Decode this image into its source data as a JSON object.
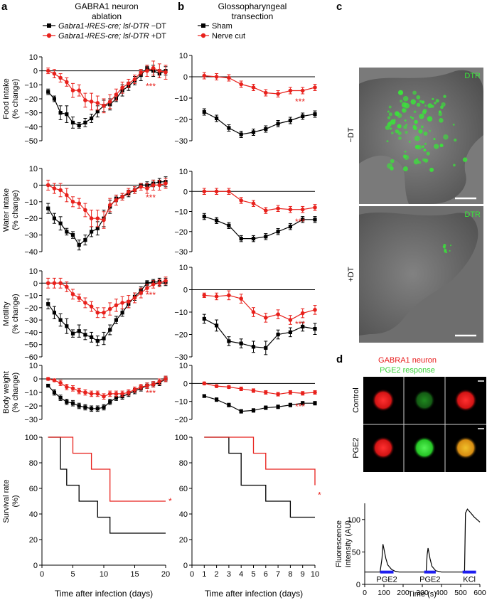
{
  "panel_labels": {
    "a": "a",
    "b": "b",
    "c": "c",
    "d": "d"
  },
  "colors": {
    "ctrl": "#000000",
    "treat": "#e8211c",
    "green": "#39e639",
    "red": "#e81c1c",
    "yellow": "#e3a21a",
    "bar": "#1d1df0"
  },
  "panel_a": {
    "title_line1": "GABRA1 neuron",
    "title_line2": "ablation",
    "legend": [
      {
        "label_italic": "Gabra1-IRES-cre; lsl-DTR",
        "label_suffix": " −DT",
        "color": "#000000",
        "marker": "square"
      },
      {
        "label_italic": "Gabra1-IRES-cre; lsl-DTR",
        "label_suffix": " +DT",
        "color": "#e8211c",
        "marker": "circle"
      }
    ],
    "xlabel": "Time after infection (days)"
  },
  "panel_b": {
    "title_line1": "Glossopharyngeal",
    "title_line2": "transection",
    "legend": [
      {
        "label": "Sham",
        "color": "#000000",
        "marker": "square"
      },
      {
        "label": "Nerve cut",
        "color": "#e8211c",
        "marker": "circle"
      }
    ],
    "xlabel": "Time after infection (days)"
  },
  "panel_c": {
    "row_labels": [
      "−DT",
      "+DT"
    ],
    "image_labels": [
      "DTR",
      "DTR"
    ]
  },
  "panel_d": {
    "legend_line1": "GABRA1 neuron",
    "legend_line2": "PGE2 response",
    "row_labels": [
      "Control",
      "PGE2"
    ],
    "stim_labels": [
      "PGE2",
      "PGE2",
      "KCl"
    ]
  },
  "chart_data": [
    {
      "id": "a1",
      "type": "line",
      "ylabel": [
        "Food intake",
        "(% change)"
      ],
      "ylim": [
        -50,
        10
      ],
      "yticks": [
        10,
        0,
        -10,
        -20,
        -30,
        -40,
        -50
      ],
      "x": [
        1,
        2,
        3,
        4,
        5,
        6,
        7,
        8,
        9,
        10,
        11,
        12,
        13,
        14,
        15,
        16,
        17,
        18,
        19,
        20
      ],
      "significance": "***",
      "series": [
        {
          "name": "−DT",
          "values": [
            -15,
            -20,
            -30,
            -31,
            -37,
            -39,
            -37,
            -34,
            -29,
            -25,
            -24,
            -20,
            -14,
            -11,
            -7,
            -3,
            2,
            0,
            -2,
            0
          ],
          "err": [
            2,
            2,
            5,
            6,
            4,
            2,
            3,
            3,
            4,
            4,
            4,
            2,
            4,
            3,
            3,
            4,
            2,
            4,
            3,
            3
          ]
        },
        {
          "name": "+DT",
          "values": [
            0,
            -2,
            -5,
            -8,
            -14,
            -14,
            -21,
            -22,
            -23,
            -25,
            -22,
            -17,
            -12,
            -9,
            -6,
            -1,
            0,
            2,
            0,
            -1
          ],
          "err": [
            2,
            3,
            3,
            3,
            5,
            4,
            5,
            6,
            5,
            5,
            5,
            4,
            4,
            3,
            3,
            2,
            4,
            5,
            5,
            5
          ]
        }
      ]
    },
    {
      "id": "a2",
      "type": "line",
      "ylabel": [
        "Water intake",
        "(% change)"
      ],
      "ylim": [
        -40,
        10
      ],
      "yticks": [
        10,
        0,
        -10,
        -20,
        -30,
        -40
      ],
      "x": [
        1,
        2,
        3,
        4,
        5,
        6,
        7,
        8,
        9,
        10,
        11,
        12,
        13,
        14,
        15,
        16,
        17,
        18,
        19,
        20
      ],
      "significance": "***",
      "series": [
        {
          "name": "−DT",
          "values": [
            -14,
            -20,
            -23,
            -28,
            -30,
            -36,
            -33,
            -28,
            -26,
            -20,
            -13,
            -8,
            -7,
            -5,
            -3,
            0,
            0,
            1,
            2,
            2
          ],
          "err": [
            3,
            3,
            4,
            2,
            2,
            3,
            3,
            3,
            4,
            5,
            4,
            2,
            2,
            2,
            2,
            1,
            2,
            2,
            2,
            3
          ]
        },
        {
          "name": "+DT",
          "values": [
            0,
            -2,
            -3,
            -6,
            -10,
            -11,
            -15,
            -20,
            -20,
            -21,
            -12,
            -9,
            -7,
            -4,
            -3,
            -1,
            -2,
            0,
            0,
            1
          ],
          "err": [
            3,
            3,
            4,
            4,
            3,
            3,
            4,
            5,
            5,
            5,
            4,
            3,
            2,
            2,
            2,
            2,
            3,
            3,
            3,
            3
          ]
        }
      ]
    },
    {
      "id": "a3",
      "type": "line",
      "ylabel": [
        "Motility",
        "(% change)"
      ],
      "ylim": [
        -60,
        10
      ],
      "yticks": [
        10,
        0,
        -10,
        -20,
        -30,
        -40,
        -50,
        -60
      ],
      "x": [
        1,
        2,
        3,
        4,
        5,
        6,
        7,
        8,
        9,
        10,
        11,
        12,
        13,
        14,
        15,
        16,
        17,
        18,
        19,
        20
      ],
      "significance": "***",
      "series": [
        {
          "name": "−DT",
          "values": [
            -17,
            -24,
            -30,
            -35,
            -41,
            -39,
            -42,
            -44,
            -47,
            -45,
            -38,
            -30,
            -24,
            -17,
            -11,
            -6,
            0,
            1,
            1,
            1
          ],
          "err": [
            4,
            5,
            5,
            6,
            3,
            5,
            4,
            4,
            4,
            5,
            4,
            3,
            3,
            3,
            3,
            3,
            2,
            2,
            3,
            3
          ]
        },
        {
          "name": "+DT",
          "values": [
            0,
            0,
            0,
            -3,
            -9,
            -12,
            -16,
            -19,
            -24,
            -24,
            -21,
            -18,
            -16,
            -15,
            -12,
            -8,
            -4,
            -1,
            0,
            2
          ],
          "err": [
            4,
            4,
            4,
            4,
            4,
            3,
            4,
            4,
            4,
            4,
            5,
            5,
            5,
            5,
            4,
            4,
            3,
            3,
            3,
            3
          ]
        }
      ]
    },
    {
      "id": "a4",
      "type": "line",
      "ylabel": [
        "Body weight",
        "(% change)"
      ],
      "ylim": [
        -30,
        10
      ],
      "yticks": [
        10,
        0,
        -10,
        -20,
        -30
      ],
      "x": [
        1,
        2,
        3,
        4,
        5,
        6,
        7,
        8,
        9,
        10,
        11,
        12,
        13,
        14,
        15,
        16,
        17,
        18,
        19,
        20
      ],
      "significance": "***",
      "series": [
        {
          "name": "−DT",
          "values": [
            -5,
            -10,
            -14,
            -17,
            -18,
            -20,
            -21,
            -22,
            -22,
            -21,
            -17,
            -14,
            -13,
            -11,
            -9,
            -7,
            -5,
            -4,
            -3,
            0
          ],
          "err": [
            1,
            2,
            2,
            2,
            2,
            2,
            2,
            2,
            2,
            2,
            2,
            2,
            2,
            2,
            2,
            2,
            2,
            2,
            2,
            2
          ]
        },
        {
          "name": "+DT",
          "values": [
            0,
            -1,
            -3,
            -6,
            -7,
            -9,
            -10,
            -11,
            -11,
            -13,
            -11,
            -11,
            -11,
            -10,
            -8,
            -6,
            -5,
            -4,
            -2,
            0
          ],
          "err": [
            1,
            1,
            2,
            2,
            2,
            2,
            2,
            2,
            2,
            2,
            2,
            2,
            2,
            2,
            2,
            2,
            2,
            2,
            2,
            2
          ]
        }
      ]
    },
    {
      "id": "a5",
      "type": "line",
      "step": true,
      "ylabel": [
        "Survival rate",
        "(%)"
      ],
      "ylim": [
        0,
        100
      ],
      "yticks": [
        100,
        80,
        60,
        40,
        20,
        0
      ],
      "xlim": [
        0,
        20
      ],
      "xticks": [
        0,
        5,
        10,
        15,
        20
      ],
      "significance": "*",
      "series": [
        {
          "name": "−DT",
          "x": [
            1,
            3,
            4,
            6,
            7,
            9,
            11,
            20
          ],
          "values": [
            100,
            75,
            62.5,
            50,
            50,
            37.5,
            25,
            25
          ]
        },
        {
          "name": "+DT",
          "x": [
            1,
            5,
            8,
            11,
            20
          ],
          "values": [
            100,
            87.5,
            75,
            50,
            50
          ]
        }
      ]
    },
    {
      "id": "b1",
      "type": "line",
      "ylim": [
        -30,
        10
      ],
      "yticks": [
        10,
        0,
        -10,
        -20,
        -30
      ],
      "x": [
        1,
        2,
        3,
        4,
        5,
        6,
        7,
        8,
        9,
        10
      ],
      "significance": "***",
      "series": [
        {
          "name": "Sham",
          "values": [
            -16.5,
            -19.5,
            -24,
            -27,
            -26,
            -24.5,
            -22,
            -20.5,
            -18.5,
            -17.5
          ],
          "err": [
            1.5,
            1.5,
            1.5,
            1.5,
            1.5,
            1.5,
            1.5,
            1.5,
            1.5,
            1.5
          ]
        },
        {
          "name": "Nerve cut",
          "values": [
            0.5,
            0,
            -0.5,
            -3.5,
            -5,
            -7.5,
            -8,
            -6.5,
            -6.5,
            -5
          ],
          "err": [
            1.5,
            1.5,
            1.5,
            1.5,
            1.5,
            1.5,
            1.5,
            1.5,
            1.5,
            1.5
          ]
        }
      ]
    },
    {
      "id": "b2",
      "type": "line",
      "ylim": [
        -30,
        10
      ],
      "yticks": [
        10,
        0,
        -10,
        -20,
        -30
      ],
      "x": [
        1,
        2,
        3,
        4,
        5,
        6,
        7,
        8,
        9,
        10
      ],
      "significance": "***",
      "series": [
        {
          "name": "Sham",
          "values": [
            -12.5,
            -14.5,
            -17,
            -23.5,
            -23.5,
            -22.5,
            -20,
            -17.5,
            -14,
            -14
          ],
          "err": [
            1.5,
            1.5,
            1.5,
            1.5,
            1.5,
            1.5,
            1.5,
            1.5,
            1.5,
            1.5
          ]
        },
        {
          "name": "Nerve cut",
          "values": [
            0,
            0,
            0,
            -4.5,
            -6,
            -9.5,
            -8.5,
            -9,
            -9,
            -8
          ],
          "err": [
            1.5,
            1.5,
            1.5,
            1.5,
            1.5,
            1.5,
            1.5,
            1.5,
            1.5,
            1.5
          ]
        }
      ]
    },
    {
      "id": "b3",
      "type": "line",
      "ylim": [
        -30,
        10
      ],
      "yticks": [
        10,
        0,
        -10,
        -20,
        -30
      ],
      "x": [
        1,
        2,
        3,
        4,
        5,
        6,
        7,
        8,
        9,
        10
      ],
      "significance": "***",
      "series": [
        {
          "name": "Sham",
          "values": [
            -13,
            -16,
            -23,
            -24,
            -25.5,
            -26,
            -20,
            -19,
            -16.5,
            -17.5
          ],
          "err": [
            2,
            2.5,
            2,
            2,
            2.5,
            3,
            2,
            2,
            2,
            2.5
          ]
        },
        {
          "name": "Nerve cut",
          "values": [
            -2.5,
            -3,
            -2.5,
            -4,
            -10,
            -12.5,
            -11,
            -13.5,
            -10.5,
            -9
          ],
          "err": [
            1,
            1.5,
            2,
            2,
            2,
            2,
            2,
            2,
            2,
            2
          ]
        }
      ]
    },
    {
      "id": "b4",
      "type": "line",
      "ylim": [
        -20,
        10
      ],
      "yticks": [
        10,
        0,
        -10,
        -20
      ],
      "x": [
        1,
        2,
        3,
        4,
        5,
        6,
        7,
        8,
        9,
        10
      ],
      "significance": "***",
      "series": [
        {
          "name": "Sham",
          "values": [
            -7,
            -9,
            -12,
            -15.5,
            -15,
            -13.5,
            -13,
            -12,
            -11,
            -11
          ],
          "err": [
            0.8,
            1,
            1,
            1,
            1,
            1,
            1,
            1,
            1,
            1
          ]
        },
        {
          "name": "Nerve cut",
          "values": [
            0,
            -1.5,
            -2,
            -3,
            -4,
            -5,
            -6,
            -5,
            -5.5,
            -5
          ],
          "err": [
            0.8,
            0.8,
            0.8,
            1,
            1,
            1,
            1,
            1,
            1,
            1
          ]
        }
      ]
    },
    {
      "id": "b5",
      "type": "line",
      "step": true,
      "ylim": [
        0,
        100
      ],
      "yticks": [
        100,
        80,
        60,
        40,
        20,
        0
      ],
      "xlim": [
        0,
        10
      ],
      "xticks": [
        0,
        1,
        2,
        3,
        4,
        5,
        6,
        7,
        8,
        9,
        10
      ],
      "significance": "*",
      "series": [
        {
          "name": "Sham",
          "x": [
            1,
            3,
            4,
            6,
            8,
            10
          ],
          "values": [
            100,
            87.5,
            62.5,
            50,
            37.5,
            37.5
          ]
        },
        {
          "name": "Nerve cut",
          "x": [
            1,
            5,
            6,
            10
          ],
          "values": [
            100,
            87.5,
            75,
            62.5
          ]
        }
      ]
    },
    {
      "id": "d-trace",
      "type": "line",
      "ylabel": [
        "Fluorescence",
        "intensity (AU)"
      ],
      "xlabel": "Time (s)",
      "xlim": [
        0,
        600
      ],
      "ylim": [
        0,
        125
      ],
      "xticks": [
        0,
        100,
        200,
        300,
        400,
        500,
        600
      ],
      "yticks": [
        0,
        50,
        100
      ],
      "x": [
        0,
        80,
        90,
        95,
        100,
        110,
        120,
        140,
        160,
        180,
        300,
        320,
        325,
        330,
        340,
        350,
        370,
        400,
        510,
        520,
        525,
        535,
        550,
        570,
        600
      ],
      "values": [
        19,
        19,
        40,
        62,
        55,
        40,
        30,
        23,
        20,
        19,
        19,
        19,
        45,
        56,
        40,
        28,
        21,
        19,
        19,
        19,
        110,
        116,
        111,
        104,
        96
      ],
      "stimuli": [
        {
          "label": "PGE2",
          "x0": 80,
          "x1": 150
        },
        {
          "label": "PGE2",
          "x0": 310,
          "x1": 370
        },
        {
          "label": "KCl",
          "x0": 510,
          "x1": 580
        }
      ]
    }
  ]
}
